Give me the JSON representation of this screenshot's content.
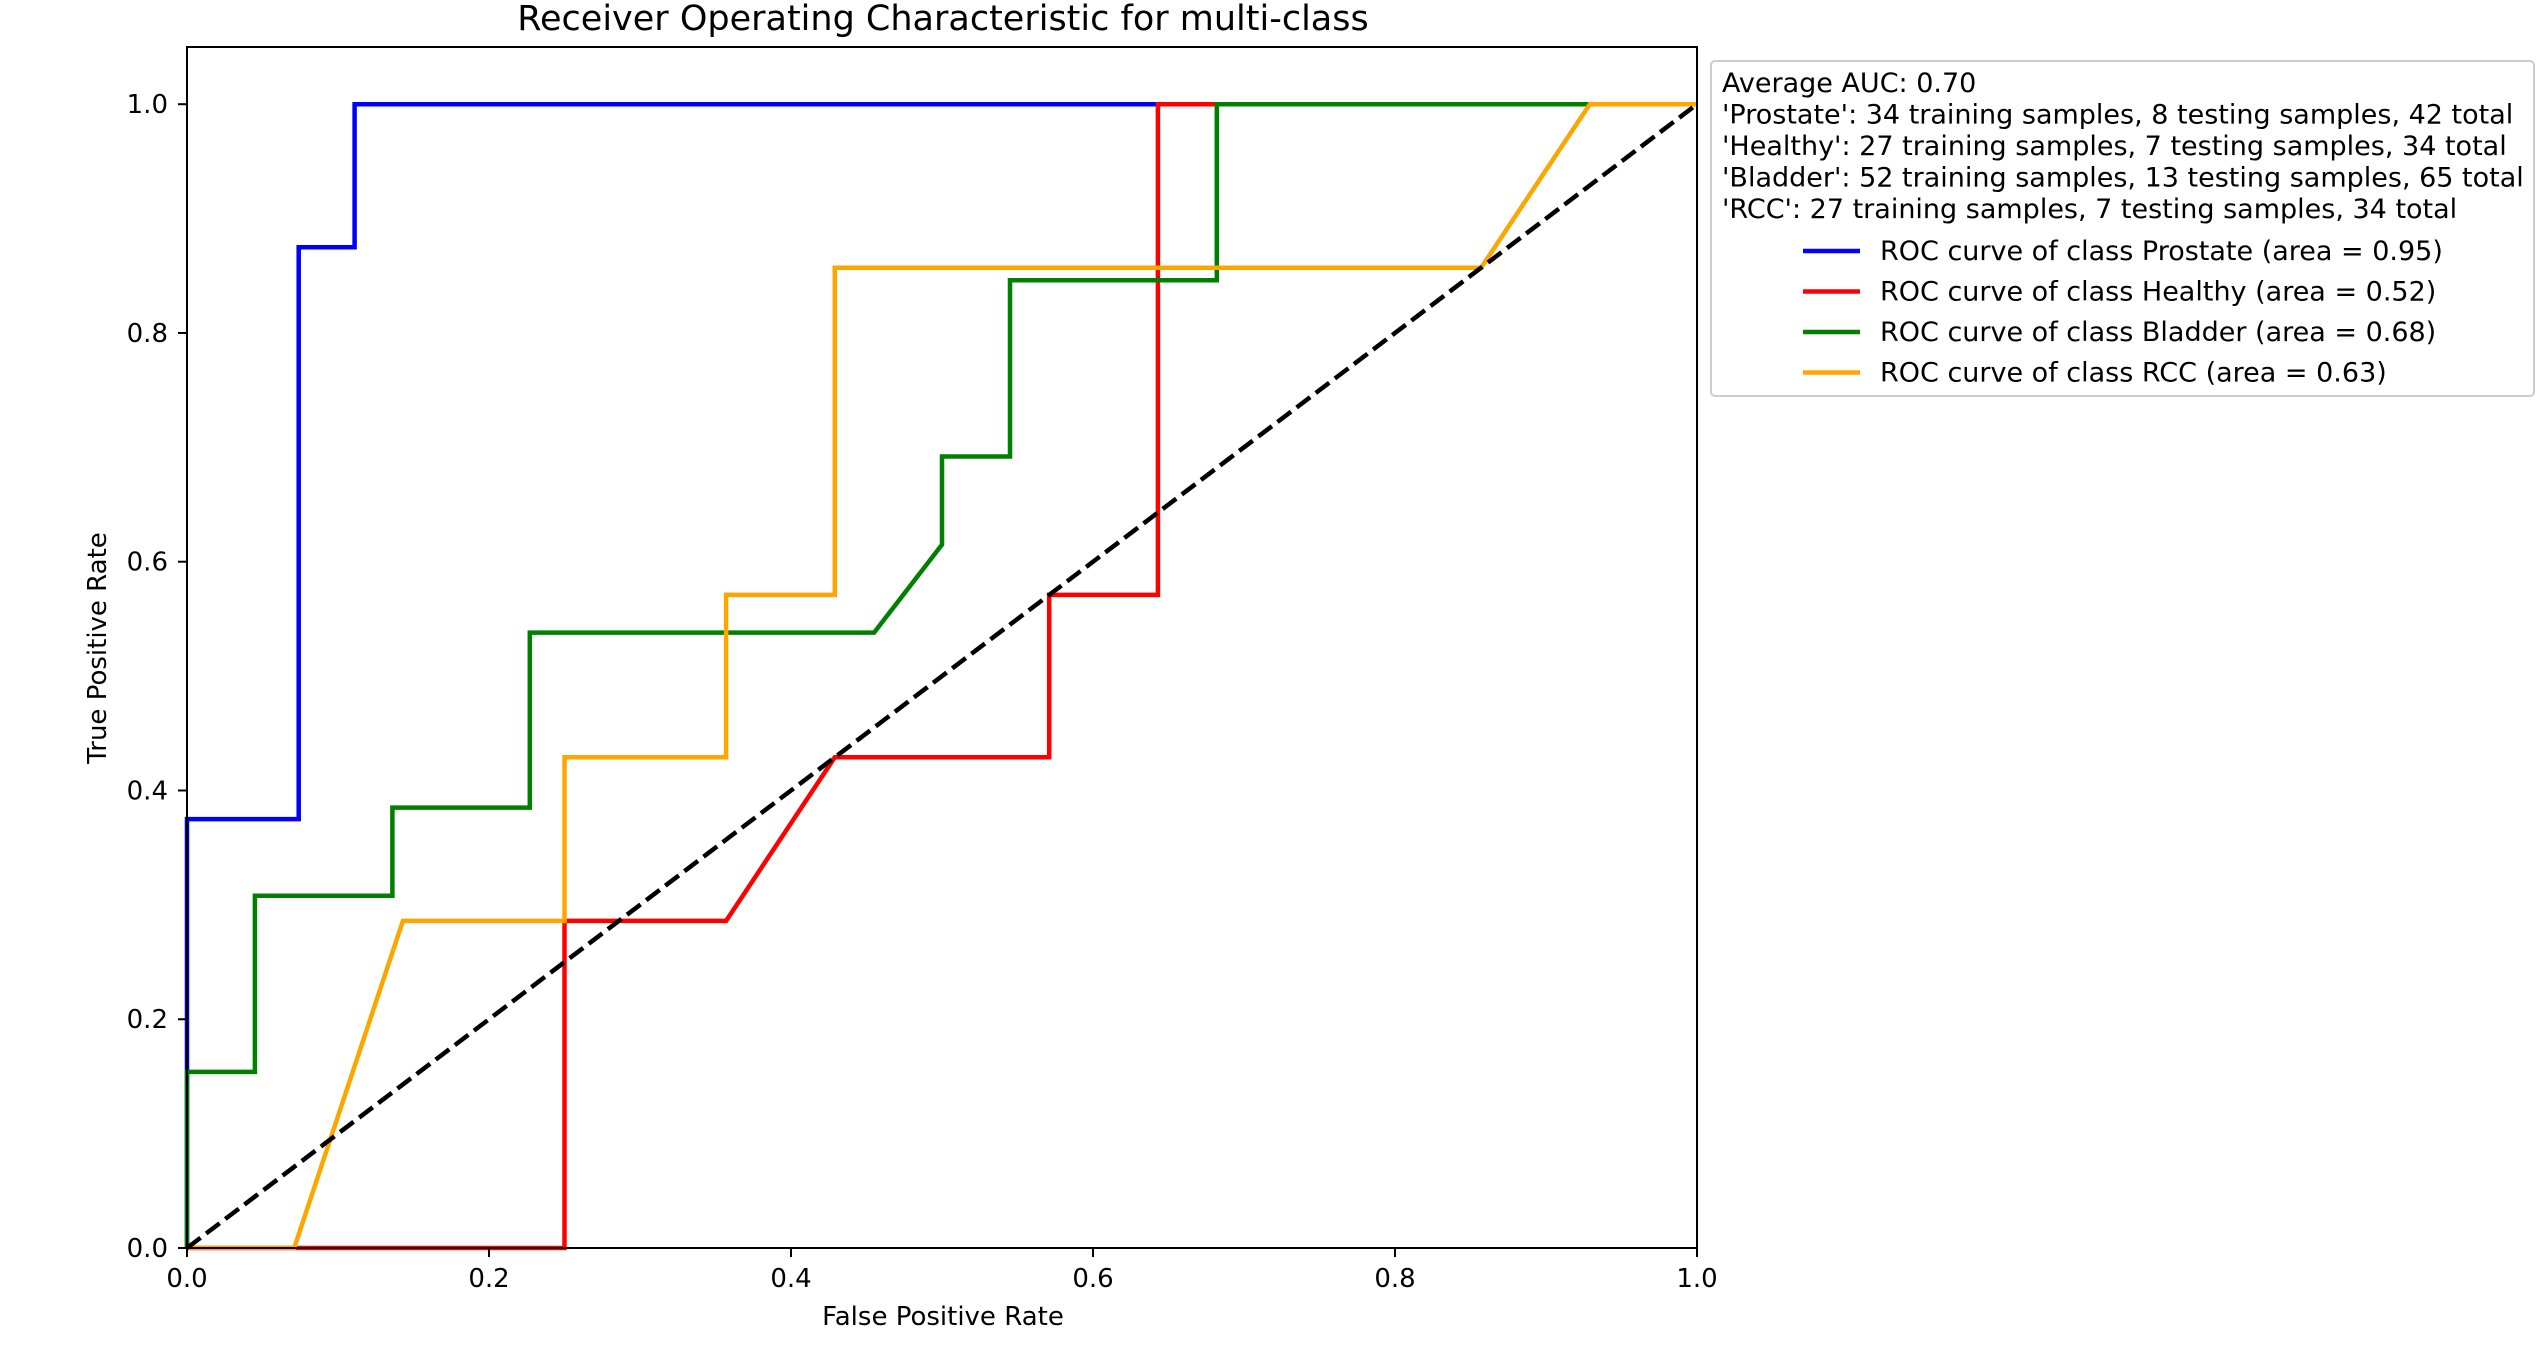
{
  "chart_data": {
    "type": "line",
    "title": "Receiver Operating Characteristic for multi-class",
    "xlabel": "False Positive Rate",
    "ylabel": "True Positive Rate",
    "xlim": [
      0.0,
      1.0
    ],
    "ylim": [
      0.0,
      1.05
    ],
    "x_ticks": [
      "0.0",
      "0.2",
      "0.4",
      "0.6",
      "0.8",
      "1.0"
    ],
    "y_ticks": [
      "0.0",
      "0.2",
      "0.4",
      "0.6",
      "0.8",
      "1.0"
    ],
    "grid": false,
    "legend_placement": "outside-upper-right",
    "legend_notes": [
      "Average AUC: 0.70",
      "'Prostate': 34 training samples, 8 testing samples, 42 total",
      "'Healthy': 27 training samples, 7 testing samples, 34 total",
      "'Bladder': 52 training samples, 13 testing samples, 65 total",
      "'RCC': 27 training samples, 7 testing samples, 34 total"
    ],
    "series": [
      {
        "name": "ROC curve of class Prostate (area = 0.95)",
        "color": "#0000ff",
        "x": [
          0.0,
          0.0,
          0.0,
          0.074,
          0.074,
          0.111,
          0.111,
          1.0
        ],
        "y": [
          0.0,
          0.125,
          0.375,
          0.375,
          0.875,
          0.875,
          1.0,
          1.0
        ]
      },
      {
        "name": "ROC curve of class Healthy (area = 0.52)",
        "color": "#ff0000",
        "x": [
          0.0,
          0.25,
          0.25,
          0.357,
          0.429,
          0.571,
          0.571,
          0.643,
          0.643,
          1.0
        ],
        "y": [
          0.0,
          0.0,
          0.286,
          0.286,
          0.429,
          0.429,
          0.571,
          0.571,
          1.0,
          1.0
        ]
      },
      {
        "name": "ROC curve of class Bladder (area = 0.68)",
        "color": "#008000",
        "x": [
          0.0,
          0.0,
          0.045,
          0.045,
          0.136,
          0.136,
          0.227,
          0.227,
          0.455,
          0.5,
          0.5,
          0.545,
          0.545,
          0.682,
          0.682,
          1.0
        ],
        "y": [
          0.0,
          0.154,
          0.154,
          0.308,
          0.308,
          0.385,
          0.385,
          0.538,
          0.538,
          0.615,
          0.692,
          0.692,
          0.846,
          0.846,
          1.0,
          1.0
        ]
      },
      {
        "name": "ROC curve of class RCC (area = 0.63)",
        "color": "#ffa500",
        "x": [
          0.0,
          0.071,
          0.143,
          0.25,
          0.25,
          0.357,
          0.357,
          0.429,
          0.429,
          0.857,
          0.929,
          1.0
        ],
        "y": [
          0.0,
          0.0,
          0.286,
          0.286,
          0.429,
          0.429,
          0.571,
          0.571,
          0.857,
          0.857,
          1.0,
          1.0
        ]
      },
      {
        "name": "",
        "color": "#000000",
        "dashed": true,
        "x": [
          0.0,
          1.0
        ],
        "y": [
          0.0,
          1.0
        ]
      }
    ]
  }
}
